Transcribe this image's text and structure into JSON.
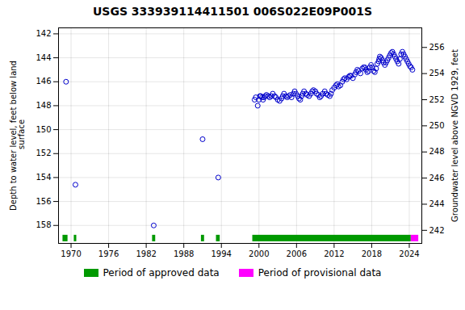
{
  "chart_data": {
    "type": "scatter",
    "title": "USGS 333939114411501 006S022E09P001S",
    "ylabel": "Depth to water level, feet below land\n surface",
    "y2label": "Groundwater level above NGVD 1929, feet",
    "xlim": [
      1968,
      2026
    ],
    "xticks": [
      1970,
      1976,
      1982,
      1988,
      1994,
      2000,
      2006,
      2012,
      2018,
      2024
    ],
    "ylim": [
      159.5,
      141.5
    ],
    "yticks": [
      142,
      144,
      146,
      148,
      150,
      152,
      154,
      156,
      158
    ],
    "y2lim": [
      241.0,
      257.5
    ],
    "y2ticks": [
      256,
      254,
      252,
      250,
      248,
      246,
      244,
      242
    ],
    "grid": true,
    "legend": "bottom",
    "color": "#0000cc",
    "marker": "circle",
    "x": [
      1969.2,
      1970.7,
      1983.2,
      1991.0,
      1993.5,
      1999.3,
      1999.5,
      1999.8,
      2000.0,
      2000.15,
      2000.3,
      2000.5,
      2000.65,
      2000.8,
      2001.0,
      2001.2,
      2001.5,
      2001.7,
      2002.0,
      2002.2,
      2002.5,
      2002.7,
      2003.0,
      2003.3,
      2003.6,
      2003.8,
      2004.0,
      2004.3,
      2004.5,
      2004.7,
      2005.0,
      2005.2,
      2005.5,
      2005.7,
      2005.9,
      2006.2,
      2006.4,
      2006.6,
      2006.8,
      2007.0,
      2007.2,
      2007.5,
      2007.7,
      2008.0,
      2008.3,
      2008.5,
      2008.7,
      2009.0,
      2009.2,
      2009.5,
      2009.7,
      2009.9,
      2010.2,
      2010.5,
      2010.7,
      2011.0,
      2011.3,
      2011.5,
      2011.7,
      2012.0,
      2012.3,
      2012.5,
      2012.7,
      2013.0,
      2013.3,
      2013.5,
      2013.7,
      2014.0,
      2014.3,
      2014.5,
      2014.7,
      2015.0,
      2015.3,
      2015.5,
      2015.7,
      2015.9,
      2016.2,
      2016.5,
      2016.7,
      2016.9,
      2017.1,
      2017.3,
      2017.5,
      2017.7,
      2017.9,
      2018.1,
      2018.3,
      2018.5,
      2018.7,
      2018.9,
      2019.1,
      2019.2,
      2019.3,
      2019.5,
      2019.7,
      2019.9,
      2020.1,
      2020.3,
      2020.5,
      2020.7,
      2020.9,
      2021.1,
      2021.3,
      2021.5,
      2021.7,
      2021.9,
      2022.1,
      2022.3,
      2022.5,
      2022.7,
      2022.9,
      2023.1,
      2023.3,
      2023.5,
      2023.7,
      2023.9,
      2024.1,
      2024.3,
      2024.5
    ],
    "values": [
      146.0,
      154.6,
      158.0,
      150.8,
      154.0,
      147.5,
      147.3,
      148.0,
      147.5,
      147.2,
      147.2,
      147.3,
      147.5,
      147.3,
      147.2,
      147.1,
      147.2,
      147.3,
      147.2,
      147.0,
      147.2,
      147.3,
      147.5,
      147.6,
      147.4,
      147.2,
      147.0,
      147.2,
      147.3,
      147.2,
      147.1,
      147.3,
      147.0,
      146.8,
      147.0,
      147.2,
      147.4,
      147.5,
      147.2,
      147.0,
      146.8,
      147.0,
      147.1,
      147.2,
      147.0,
      146.8,
      146.7,
      146.8,
      147.0,
      147.1,
      147.3,
      147.2,
      147.0,
      146.8,
      147.0,
      147.1,
      147.2,
      147.0,
      146.7,
      146.5,
      146.3,
      146.2,
      146.4,
      146.3,
      146.0,
      145.8,
      145.7,
      145.8,
      145.6,
      145.5,
      145.5,
      145.7,
      145.4,
      145.2,
      145.0,
      145.1,
      145.3,
      144.9,
      144.8,
      144.8,
      145.0,
      145.2,
      145.1,
      144.8,
      144.6,
      144.8,
      145.1,
      145.2,
      144.9,
      144.5,
      144.3,
      144.1,
      143.9,
      144.0,
      144.2,
      144.4,
      144.6,
      144.4,
      144.2,
      144.0,
      143.8,
      143.6,
      143.5,
      143.7,
      143.9,
      144.1,
      144.3,
      144.5,
      144.1,
      143.7,
      143.5,
      143.7,
      143.9,
      144.1,
      144.3,
      144.5,
      144.7,
      144.8,
      145.0
    ],
    "periods": [
      {
        "name": "Period of approved data",
        "color": "#009900",
        "segments": [
          [
            1968.7,
            1969.5
          ],
          [
            1970.5,
            1970.9
          ],
          [
            1983.0,
            1983.5
          ],
          [
            1990.8,
            1991.3
          ],
          [
            1993.2,
            1993.8
          ],
          [
            1999.0,
            2024.3
          ]
        ]
      },
      {
        "name": "Period of provisional data",
        "color": "#ff00ff",
        "segments": [
          [
            2024.3,
            2025.5
          ]
        ]
      }
    ]
  }
}
